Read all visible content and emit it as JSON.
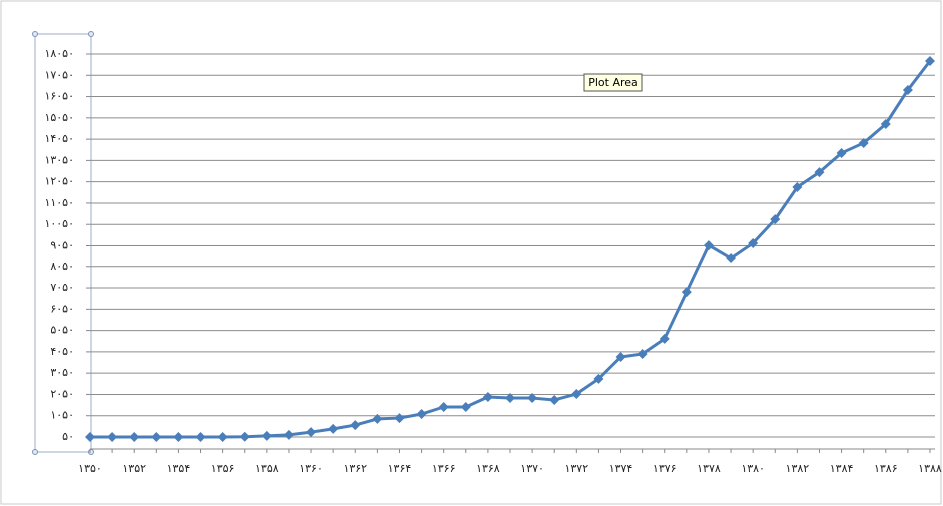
{
  "chart_data": {
    "type": "line",
    "tooltip": "Plot Area",
    "categories": [
      "۱۳۵۰",
      null,
      "۱۳۵۲",
      null,
      "۱۳۵۴",
      null,
      "۱۳۵۶",
      null,
      "۱۳۵۸",
      null,
      "۱۳۶۰",
      null,
      "۱۳۶۲",
      null,
      "۱۳۶۴",
      null,
      "۱۳۶۶",
      null,
      "۱۳۶۸",
      null,
      "۱۳۷۰",
      null,
      "۱۳۷۲",
      null,
      "۱۳۷۴",
      null,
      "۱۳۷۶",
      null,
      "۱۳۷۸",
      null,
      "۱۳۸۰",
      null,
      "۱۳۸۲",
      null,
      "۱۳۸۴",
      null,
      "۱۳۸۶",
      null,
      "۱۳۸۸"
    ],
    "series": [
      {
        "color": "#4a7ebb",
        "values": [
          50,
          50,
          50,
          50,
          50,
          50,
          50,
          60,
          100,
          150,
          280,
          430,
          610,
          900,
          940,
          1130,
          1460,
          1460,
          1930,
          1880,
          1880,
          1790,
          2070,
          2780,
          3810,
          3950,
          4660,
          6860,
          9070,
          8460,
          9170,
          10290,
          11800,
          12500,
          13400,
          13870,
          14760,
          16360,
          17720
        ]
      }
    ],
    "ylim": [
      50,
      18050
    ],
    "yticks": [
      {
        "value": 50,
        "label": "۵۰"
      },
      {
        "value": 1050,
        "label": "۱۰۵۰"
      },
      {
        "value": 2050,
        "label": "۲۰۵۰"
      },
      {
        "value": 3050,
        "label": "۳۰۵۰"
      },
      {
        "value": 4050,
        "label": "۴۰۵۰"
      },
      {
        "value": 5050,
        "label": "۵۰۵۰"
      },
      {
        "value": 6050,
        "label": "۶۰۵۰"
      },
      {
        "value": 7050,
        "label": "۷۰۵۰"
      },
      {
        "value": 8050,
        "label": "۸۰۵۰"
      },
      {
        "value": 9050,
        "label": "۹۰۵۰"
      },
      {
        "value": 10050,
        "label": "۱۰۰۵۰"
      },
      {
        "value": 11050,
        "label": "۱۱۰۵۰"
      },
      {
        "value": 12050,
        "label": "۱۲۰۵۰"
      },
      {
        "value": 13050,
        "label": "۱۳۰۵۰"
      },
      {
        "value": 14050,
        "label": "۱۴۰۵۰"
      },
      {
        "value": 15050,
        "label": "۱۵۰۵۰"
      },
      {
        "value": 16050,
        "label": "۱۶۰۵۰"
      },
      {
        "value": 17050,
        "label": "۱۷۰۵۰"
      },
      {
        "value": 18050,
        "label": "۱۸۰۵۰"
      }
    ],
    "grid": true
  }
}
